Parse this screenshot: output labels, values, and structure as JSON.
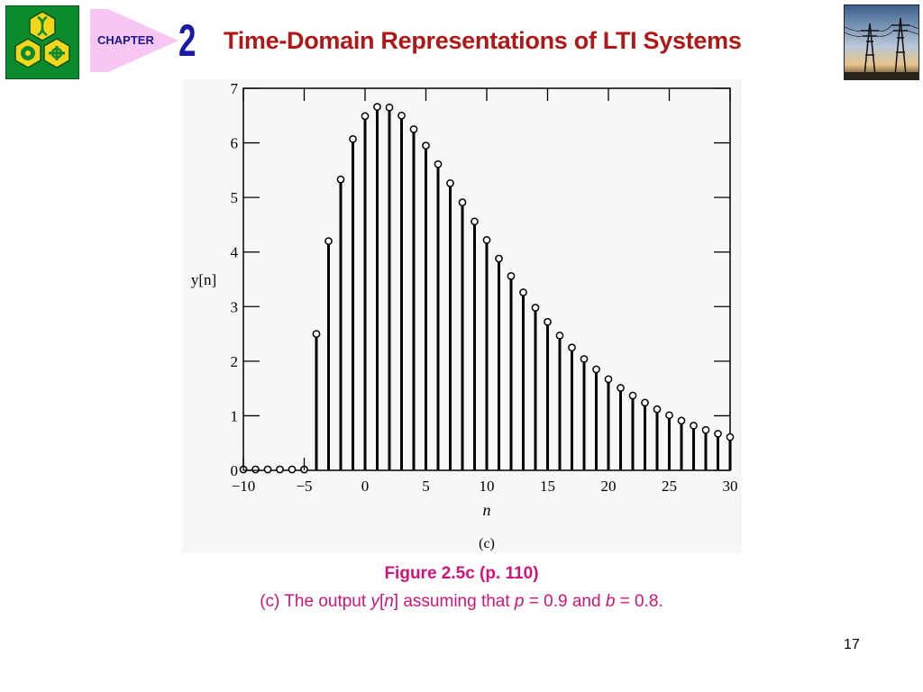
{
  "header": {
    "chapter_label": "CHAPTER",
    "chapter_number": "2",
    "title": "Time-Domain Representations of LTI Systems"
  },
  "colors": {
    "logo_green": "#0b8a2e",
    "logo_yellow": "#f2d51c",
    "chapter_tag_pink": "#f7c6f2",
    "title_red": "#b01818",
    "caption_magenta": "#d4137a"
  },
  "chart_data": {
    "type": "stem",
    "xlabel": "n",
    "ylabel": "y[n]",
    "panel_label": "(c)",
    "xlim": [
      -10,
      30
    ],
    "ylim": [
      0,
      7
    ],
    "x_ticks": [
      -10,
      -5,
      0,
      5,
      10,
      15,
      20,
      25,
      30
    ],
    "x_tick_labels": [
      "−10",
      "−5",
      "0",
      "5",
      "10",
      "15",
      "20",
      "25",
      "30"
    ],
    "y_ticks": [
      0,
      1,
      2,
      3,
      4,
      5,
      6,
      7
    ],
    "y_tick_labels": [
      "0",
      "1",
      "2",
      "3",
      "4",
      "5",
      "6",
      "7"
    ],
    "x": [
      -10,
      -9,
      -8,
      -7,
      -6,
      -5,
      -4,
      -3,
      -2,
      -1,
      0,
      1,
      2,
      3,
      4,
      5,
      6,
      7,
      8,
      9,
      10,
      11,
      12,
      13,
      14,
      15,
      16,
      17,
      18,
      19,
      20,
      21,
      22,
      23,
      24,
      25,
      26,
      27,
      28,
      29,
      30
    ],
    "values": [
      0,
      0,
      0,
      0,
      0,
      0,
      2.5,
      4.2,
      5.33,
      6.07,
      6.49,
      6.66,
      6.65,
      6.5,
      6.25,
      5.95,
      5.61,
      5.26,
      4.91,
      4.56,
      4.22,
      3.88,
      3.56,
      3.26,
      2.98,
      2.72,
      2.47,
      2.25,
      2.04,
      1.85,
      1.67,
      1.51,
      1.37,
      1.24,
      1.12,
      1.01,
      0.91,
      0.82,
      0.74,
      0.67,
      0.61
    ]
  },
  "caption": {
    "title": "Figure 2.5c  (p. 110)",
    "text_prefix": "(c) The output ",
    "y_var": "y",
    "bracket_open": "[",
    "n_var": "n",
    "bracket_close": "]",
    "text_middle": " assuming that ",
    "p_var": "p",
    "p_value": " = 0.9 and ",
    "b_var": "b",
    "b_value": " = 0.8."
  },
  "page_number": "17"
}
